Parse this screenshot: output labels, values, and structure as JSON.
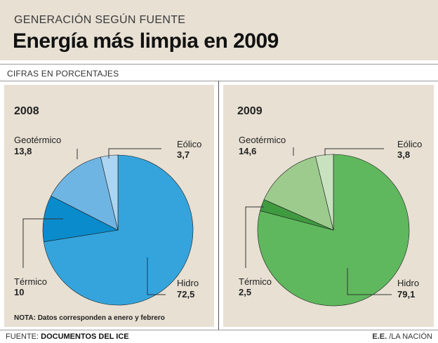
{
  "header": {
    "kicker": "GENERACIÓN SEGÚN FUENTE",
    "title": "Energía más limpia en 2009",
    "unit_label": "CIFRAS EN PORCENTAJES"
  },
  "chart_data": [
    {
      "type": "pie",
      "title": "2008",
      "start_angle_deg": 0,
      "direction": "clockwise",
      "slices": [
        {
          "label": "Hidro",
          "value": 72.5,
          "value_text": "72,5",
          "color": "#35a4dc"
        },
        {
          "label": "Térmico",
          "value": 10,
          "value_text": "10",
          "color": "#0a8bcc"
        },
        {
          "label": "Geotérmico",
          "value": 13.8,
          "value_text": "13,8",
          "color": "#6fb5e3"
        },
        {
          "label": "Eólico",
          "value": 3.7,
          "value_text": "3,7",
          "color": "#acd5f2"
        }
      ],
      "note": "NOTA: Datos corresponden a enero y febrero"
    },
    {
      "type": "pie",
      "title": "2009",
      "start_angle_deg": 0,
      "direction": "clockwise",
      "slices": [
        {
          "label": "Hidro",
          "value": 79.1,
          "value_text": "79,1",
          "color": "#5fb85d"
        },
        {
          "label": "Térmico",
          "value": 2.5,
          "value_text": "2,5",
          "color": "#3f9a40"
        },
        {
          "label": "Geotérmico",
          "value": 14.6,
          "value_text": "14,6",
          "color": "#9dcb8e"
        },
        {
          "label": "Eólico",
          "value": 3.8,
          "value_text": "3,8",
          "color": "#c8e2bf"
        }
      ]
    }
  ],
  "footer": {
    "source_label": "FUENTE:",
    "source": "DOCUMENTOS DEL ICE",
    "credit_initials": "E.E.",
    "credit_outlet": "/LA NACIÓN"
  }
}
